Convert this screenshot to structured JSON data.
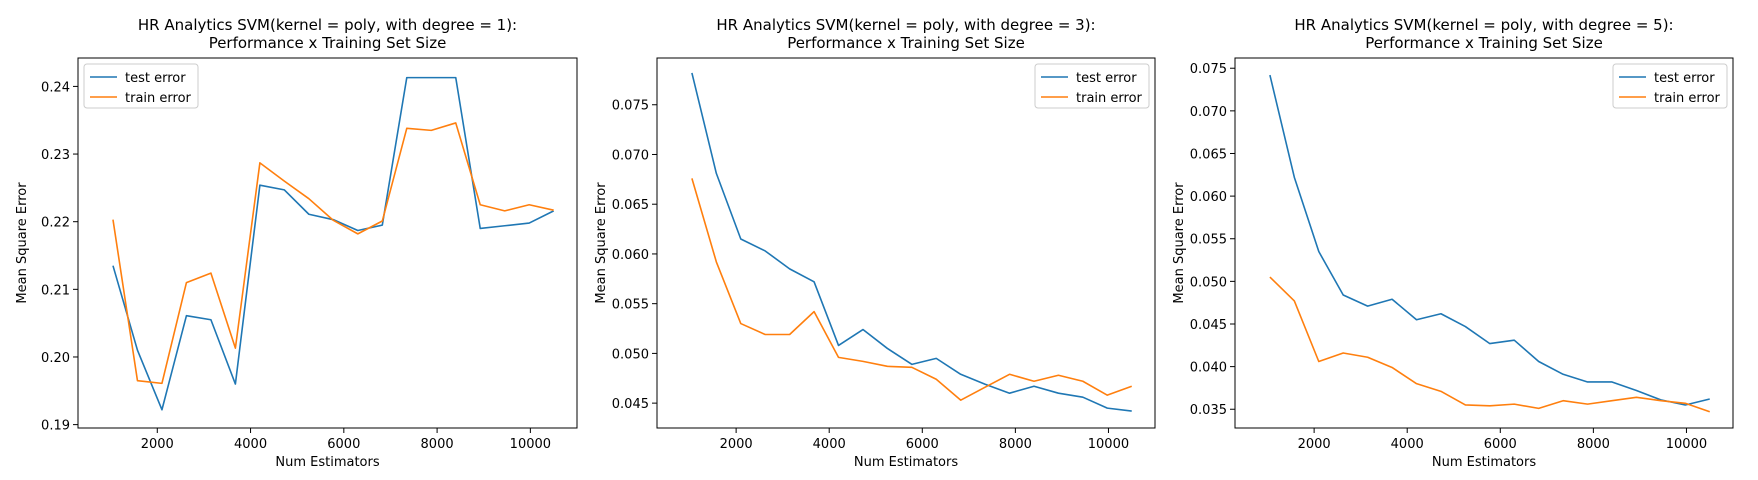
{
  "chart_data": [
    {
      "type": "line",
      "title": "HR Analytics SVM(kernel = poly, with degree = 1):",
      "subtitle": "Performance x Training Set Size",
      "xlabel": "Num Estimators",
      "ylabel": "Mean Square Error",
      "xlim": [
        300,
        11000
      ],
      "ylim": [
        0.1895,
        0.2442
      ],
      "xticks": [
        2000,
        4000,
        6000,
        8000,
        10000
      ],
      "yticks": [
        0.19,
        0.2,
        0.21,
        0.22,
        0.23,
        0.24
      ],
      "ytick_labels": [
        "0.19",
        "0.20",
        "0.21",
        "0.22",
        "0.23",
        "0.24"
      ],
      "legend_position": "upper-left",
      "grid": false,
      "x": [
        1050,
        1575,
        2100,
        2625,
        3150,
        3675,
        4200,
        4725,
        5250,
        5775,
        6300,
        6825,
        7350,
        7875,
        8400,
        8925,
        9450,
        9975,
        10500
      ],
      "series": [
        {
          "name": "test error",
          "color": "#1f77b4",
          "values": [
            0.2135,
            0.201,
            0.1922,
            0.2061,
            0.2055,
            0.196,
            0.2254,
            0.2247,
            0.2211,
            0.2203,
            0.2187,
            0.2195,
            0.2413,
            0.2413,
            0.2413,
            0.219,
            0.2194,
            0.2198,
            0.2216
          ]
        },
        {
          "name": "train error",
          "color": "#ff7f0e",
          "values": [
            0.2203,
            0.1965,
            0.1961,
            0.211,
            0.2124,
            0.2013,
            0.2287,
            0.226,
            0.2234,
            0.2202,
            0.2182,
            0.2201,
            0.2338,
            0.2335,
            0.2346,
            0.2225,
            0.2216,
            0.2225,
            0.2217
          ]
        }
      ]
    },
    {
      "type": "line",
      "title": "HR Analytics SVM(kernel = poly, with degree = 3):",
      "subtitle": "Performance x Training Set Size",
      "xlabel": "Num Estimators",
      "ylabel": "Mean Square Error",
      "xlim": [
        300,
        11000
      ],
      "ylim": [
        0.0425,
        0.0797
      ],
      "xticks": [
        2000,
        4000,
        6000,
        8000,
        10000
      ],
      "yticks": [
        0.045,
        0.05,
        0.055,
        0.06,
        0.065,
        0.07,
        0.075
      ],
      "ytick_labels": [
        "0.045",
        "0.050",
        "0.055",
        "0.060",
        "0.065",
        "0.070",
        "0.075"
      ],
      "legend_position": "upper-right",
      "grid": false,
      "x": [
        1050,
        1575,
        2100,
        2625,
        3150,
        3675,
        4200,
        4725,
        5250,
        5775,
        6300,
        6825,
        7350,
        7875,
        8400,
        8925,
        9450,
        9975,
        10500
      ],
      "series": [
        {
          "name": "test error",
          "color": "#1f77b4",
          "values": [
            0.0782,
            0.0681,
            0.0615,
            0.0603,
            0.0585,
            0.0572,
            0.0508,
            0.0524,
            0.0505,
            0.0489,
            0.0495,
            0.0479,
            0.0469,
            0.046,
            0.0467,
            0.046,
            0.0456,
            0.0445,
            0.0442
          ]
        },
        {
          "name": "train error",
          "color": "#ff7f0e",
          "values": [
            0.0676,
            0.0592,
            0.053,
            0.0519,
            0.0519,
            0.0542,
            0.0496,
            0.0492,
            0.0487,
            0.0486,
            0.0474,
            0.0453,
            0.0466,
            0.0479,
            0.0472,
            0.0478,
            0.0472,
            0.0458,
            0.0467
          ]
        }
      ]
    },
    {
      "type": "line",
      "title": "HR Analytics SVM(kernel = poly, with degree = 5):",
      "subtitle": "Performance x Training Set Size",
      "xlabel": "Num Estimators",
      "ylabel": "Mean Square Error",
      "xlim": [
        300,
        11000
      ],
      "ylim": [
        0.0328,
        0.0762
      ],
      "xticks": [
        2000,
        4000,
        6000,
        8000,
        10000
      ],
      "yticks": [
        0.035,
        0.04,
        0.045,
        0.05,
        0.055,
        0.06,
        0.065,
        0.07,
        0.075
      ],
      "ytick_labels": [
        "0.035",
        "0.040",
        "0.045",
        "0.050",
        "0.055",
        "0.060",
        "0.065",
        "0.070",
        "0.075"
      ],
      "legend_position": "upper-right",
      "grid": false,
      "x": [
        1050,
        1575,
        2100,
        2625,
        3150,
        3675,
        4200,
        4725,
        5250,
        5775,
        6300,
        6825,
        7350,
        7875,
        8400,
        8925,
        9450,
        9975,
        10500
      ],
      "series": [
        {
          "name": "test error",
          "color": "#1f77b4",
          "values": [
            0.0742,
            0.0622,
            0.0535,
            0.0484,
            0.0471,
            0.0479,
            0.0455,
            0.0462,
            0.0447,
            0.0427,
            0.0431,
            0.0406,
            0.0391,
            0.0382,
            0.0382,
            0.0372,
            0.0361,
            0.0355,
            0.0362
          ]
        },
        {
          "name": "train error",
          "color": "#ff7f0e",
          "values": [
            0.0505,
            0.0477,
            0.0406,
            0.0416,
            0.0411,
            0.0399,
            0.038,
            0.0371,
            0.0355,
            0.0354,
            0.0356,
            0.0351,
            0.036,
            0.0356,
            0.036,
            0.0364,
            0.036,
            0.0357,
            0.0347
          ]
        }
      ]
    }
  ]
}
